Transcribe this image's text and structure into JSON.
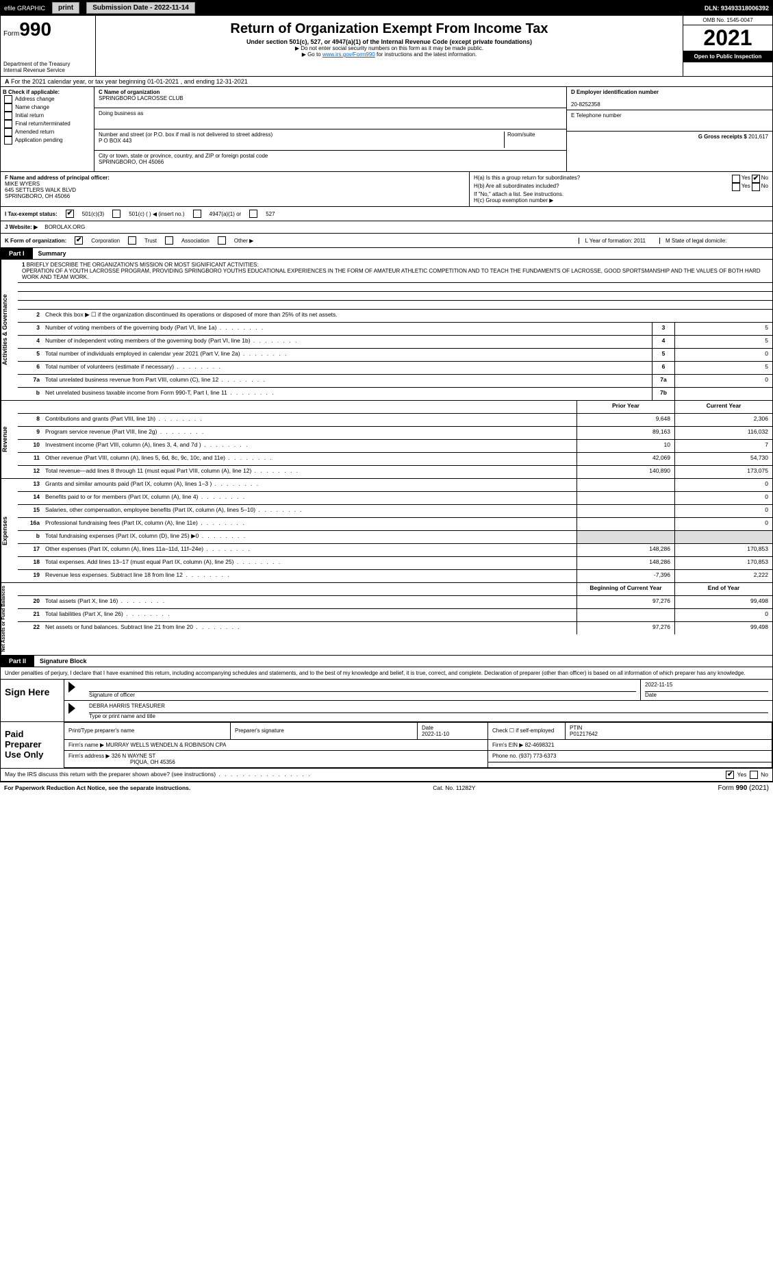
{
  "topbar": {
    "efile": "efile GRAPHIC",
    "print": "print",
    "submission": "Submission Date - 2022-11-14",
    "dln": "DLN: 93493318006392"
  },
  "header": {
    "form_label": "Form",
    "form_number": "990",
    "title": "Return of Organization Exempt From Income Tax",
    "subtitle": "Under section 501(c), 527, or 4947(a)(1) of the Internal Revenue Code (except private foundations)",
    "note1": "▶ Do not enter social security numbers on this form as it may be made public.",
    "note2_pre": "▶ Go to ",
    "note2_link": "www.irs.gov/Form990",
    "note2_post": " for instructions and the latest information.",
    "dept": "Department of the Treasury\nInternal Revenue Service",
    "omb": "OMB No. 1545-0047",
    "year": "2021",
    "oti": "Open to Public Inspection"
  },
  "row_a": "For the 2021 calendar year, or tax year beginning 01-01-2021    , and ending 12-31-2021",
  "col_b": {
    "head": "B Check if applicable:",
    "items": [
      "Address change",
      "Name change",
      "Initial return",
      "Final return/terminated",
      "Amended return",
      "Application pending"
    ]
  },
  "col_c": {
    "name_label": "C Name of organization",
    "name": "SPRINGBORO LACROSSE CLUB",
    "dba_label": "Doing business as",
    "dba": "",
    "addr_label": "Number and street (or P.O. box if mail is not delivered to street address)",
    "room_label": "Room/suite",
    "addr": "P O BOX 443",
    "city_label": "City or town, state or province, country, and ZIP or foreign postal code",
    "city": "SPRINGBORO, OH  45066"
  },
  "col_deg": {
    "d_label": "D Employer identification number",
    "d_val": "20-8252358",
    "e_label": "E Telephone number",
    "e_val": "",
    "g_label": "G Gross receipts $",
    "g_val": "201,617"
  },
  "row_f": {
    "label": "F  Name and address of principal officer:",
    "name": "MIKE WYERS",
    "addr1": "645 SETTLERS WALK BLVD",
    "addr2": "SPRINGBORO, OH  45066"
  },
  "row_h": {
    "ha": "H(a)  Is this a group return for subordinates?",
    "hb": "H(b)  Are all subordinates included?",
    "hb_note": "If \"No,\" attach a list. See instructions.",
    "hc": "H(c)  Group exemption number ▶",
    "yes": "Yes",
    "no": "No"
  },
  "row_i": {
    "label": "I  Tax-exempt status:",
    "o1": "501(c)(3)",
    "o2": "501(c) (   ) ◀ (insert no.)",
    "o3": "4947(a)(1) or",
    "o4": "527"
  },
  "row_j": {
    "label": "J  Website: ▶",
    "val": "BOROLAX.ORG"
  },
  "row_k": {
    "label": "K Form of organization:",
    "o1": "Corporation",
    "o2": "Trust",
    "o3": "Association",
    "o4": "Other ▶",
    "l": "L Year of formation: 2011",
    "m": "M State of legal domicile:"
  },
  "part1": {
    "num": "Part I",
    "title": "Summary"
  },
  "mission": {
    "num": "1",
    "label": "Briefly describe the organization's mission or most significant activities:",
    "text": "OPERATION OF A YOUTH LACROSSE PROGRAM, PROVIDING SPRINGBORO YOUTHS EDUCATIONAL EXPERIENCES IN THE FORM OF AMATEUR ATHLETIC COMPETITION AND TO TEACH THE FUNDAMENTS OF LACROSSE, GOOD SPORTSMANSHIP AND THE VALUES OF BOTH HARD WORK AND TEAM WORK."
  },
  "vtabs": {
    "ag": "Activities & Governance",
    "rev": "Revenue",
    "exp": "Expenses",
    "nafb": "Net Assets or Fund Balances"
  },
  "ag_rows": [
    {
      "n": "2",
      "l": "Check this box ▶ ☐  if the organization discontinued its operations or disposed of more than 25% of its net assets."
    },
    {
      "n": "3",
      "l": "Number of voting members of the governing body (Part VI, line 1a)",
      "box": "3",
      "v": "5"
    },
    {
      "n": "4",
      "l": "Number of independent voting members of the governing body (Part VI, line 1b)",
      "box": "4",
      "v": "5"
    },
    {
      "n": "5",
      "l": "Total number of individuals employed in calendar year 2021 (Part V, line 2a)",
      "box": "5",
      "v": "0"
    },
    {
      "n": "6",
      "l": "Total number of volunteers (estimate if necessary)",
      "box": "6",
      "v": "5"
    },
    {
      "n": "7a",
      "l": "Total unrelated business revenue from Part VIII, column (C), line 12",
      "box": "7a",
      "v": "0"
    },
    {
      "n": "b",
      "l": "Net unrelated business taxable income from Form 990-T, Part I, line 11",
      "box": "7b",
      "v": ""
    }
  ],
  "col_headers": {
    "prior": "Prior Year",
    "current": "Current Year"
  },
  "rev_rows": [
    {
      "n": "8",
      "l": "Contributions and grants (Part VIII, line 1h)",
      "p": "9,648",
      "c": "2,306"
    },
    {
      "n": "9",
      "l": "Program service revenue (Part VIII, line 2g)",
      "p": "89,163",
      "c": "116,032"
    },
    {
      "n": "10",
      "l": "Investment income (Part VIII, column (A), lines 3, 4, and 7d )",
      "p": "10",
      "c": "7"
    },
    {
      "n": "11",
      "l": "Other revenue (Part VIII, column (A), lines 5, 6d, 8c, 9c, 10c, and 11e)",
      "p": "42,069",
      "c": "54,730"
    },
    {
      "n": "12",
      "l": "Total revenue—add lines 8 through 11 (must equal Part VIII, column (A), line 12)",
      "p": "140,890",
      "c": "173,075"
    }
  ],
  "exp_rows": [
    {
      "n": "13",
      "l": "Grants and similar amounts paid (Part IX, column (A), lines 1–3 )",
      "p": "",
      "c": "0"
    },
    {
      "n": "14",
      "l": "Benefits paid to or for members (Part IX, column (A), line 4)",
      "p": "",
      "c": "0"
    },
    {
      "n": "15",
      "l": "Salaries, other compensation, employee benefits (Part IX, column (A), lines 5–10)",
      "p": "",
      "c": "0"
    },
    {
      "n": "16a",
      "l": "Professional fundraising fees (Part IX, column (A), line 11e)",
      "p": "",
      "c": "0"
    },
    {
      "n": "b",
      "l": "Total fundraising expenses (Part IX, column (D), line 25) ▶0",
      "p": "shade",
      "c": "shade"
    },
    {
      "n": "17",
      "l": "Other expenses (Part IX, column (A), lines 11a–11d, 11f–24e)",
      "p": "148,286",
      "c": "170,853"
    },
    {
      "n": "18",
      "l": "Total expenses. Add lines 13–17 (must equal Part IX, column (A), line 25)",
      "p": "148,286",
      "c": "170,853"
    },
    {
      "n": "19",
      "l": "Revenue less expenses. Subtract line 18 from line 12",
      "p": "-7,396",
      "c": "2,222"
    }
  ],
  "nafb_header": {
    "boy": "Beginning of Current Year",
    "eoy": "End of Year"
  },
  "nafb_rows": [
    {
      "n": "20",
      "l": "Total assets (Part X, line 16)",
      "p": "97,276",
      "c": "99,498"
    },
    {
      "n": "21",
      "l": "Total liabilities (Part X, line 26)",
      "p": "",
      "c": "0"
    },
    {
      "n": "22",
      "l": "Net assets or fund balances. Subtract line 21 from line 20",
      "p": "97,276",
      "c": "99,498"
    }
  ],
  "part2": {
    "num": "Part II",
    "title": "Signature Block"
  },
  "sig_text": "Under penalties of perjury, I declare that I have examined this return, including accompanying schedules and statements, and to the best of my knowledge and belief, it is true, correct, and complete. Declaration of preparer (other than officer) is based on all information of which preparer has any knowledge.",
  "sign_here": {
    "label": "Sign Here",
    "sig_label": "Signature of officer",
    "date_label": "Date",
    "date": "2022-11-15",
    "name": "DEBRA HARRIS  TREASURER",
    "name_label": "Type or print name and title"
  },
  "paid_prep": {
    "label": "Paid Preparer Use Only",
    "h1": "Print/Type preparer's name",
    "h2": "Preparer's signature",
    "h3": "Date",
    "h3v": "2022-11-10",
    "h4": "Check ☐ if self-employed",
    "h5": "PTIN",
    "h5v": "P01217642",
    "firm_label": "Firm's name    ▶",
    "firm": "MURRAY WELLS WENDELN & ROBINSON CPA",
    "ein_label": "Firm's EIN ▶",
    "ein": "82-4698321",
    "addr_label": "Firm's address ▶",
    "addr": "326 N WAYNE ST",
    "addr2": "PIQUA, OH  45356",
    "phone_label": "Phone no.",
    "phone": "(937) 773-6373"
  },
  "may_irs": {
    "text": "May the IRS discuss this return with the preparer shown above? (see instructions)",
    "yes": "Yes",
    "no": "No"
  },
  "footer": {
    "left": "For Paperwork Reduction Act Notice, see the separate instructions.",
    "mid": "Cat. No. 11282Y",
    "right": "Form 990 (2021)"
  },
  "colors": {
    "black": "#000000",
    "white": "#ffffff",
    "shade": "#dddddd",
    "link": "#0066cc",
    "btn": "#d0d0d0"
  }
}
